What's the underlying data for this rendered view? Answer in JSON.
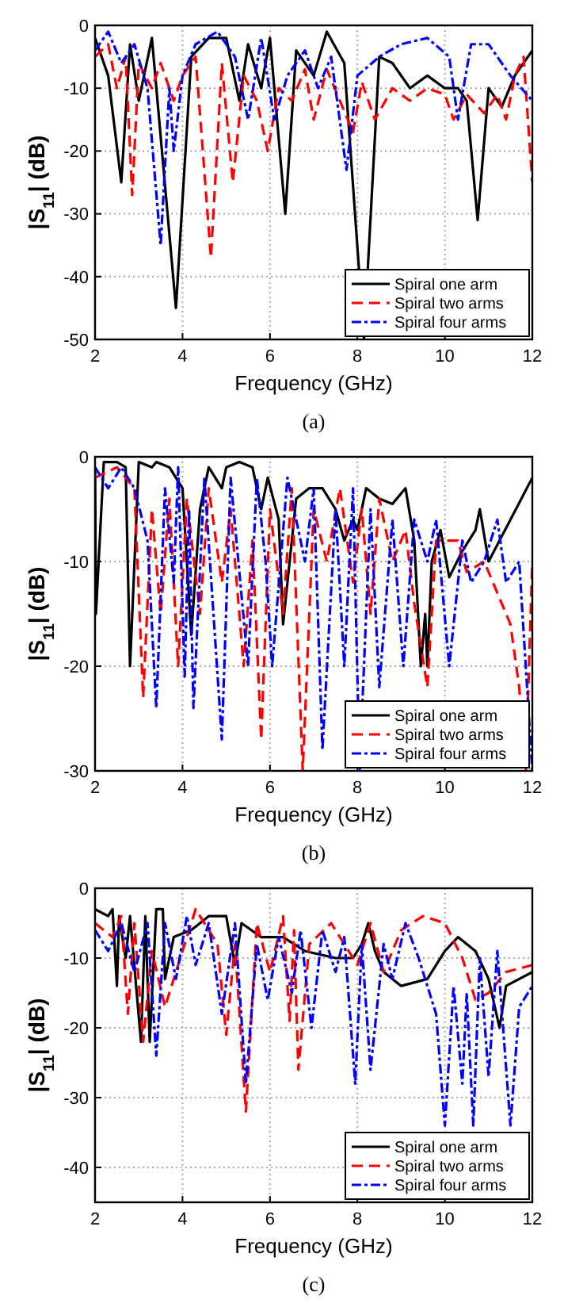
{
  "chart_data": [
    {
      "type": "line",
      "xlabel": "Frequency (GHz)",
      "ylabel": "|S$_{11}$| (dB)",
      "annotations": [
        "(a)"
      ],
      "xlim": [
        2,
        12
      ],
      "ylim": [
        -50,
        0
      ],
      "xticks": [
        2,
        4,
        6,
        8,
        10,
        12
      ],
      "yticks": [
        -50,
        -40,
        -30,
        -20,
        -10,
        0
      ],
      "grid": true,
      "legend": "bottom right",
      "series": [
        {
          "name": "Spiral one arm",
          "color": "#000000",
          "line_style": "solid",
          "x": [
            2,
            2.3,
            2.6,
            2.8,
            3.0,
            3.3,
            3.85,
            4.2,
            4.6,
            5.0,
            5.3,
            5.5,
            5.8,
            6.0,
            6.35,
            6.6,
            7.0,
            7.3,
            7.7,
            8.15,
            8.5,
            8.8,
            9.2,
            9.6,
            10.0,
            10.3,
            10.5,
            10.75,
            11.0,
            11.3,
            11.6,
            12
          ],
          "values": [
            -2,
            -8,
            -25,
            -3,
            -12,
            -2,
            -45,
            -5,
            -2,
            -2,
            -12,
            -3,
            -10,
            -2,
            -30,
            -4,
            -8,
            -1,
            -6,
            -50,
            -5,
            -6,
            -10,
            -8,
            -10,
            -10,
            -12,
            -31,
            -10,
            -13,
            -8,
            -4
          ]
        },
        {
          "name": "Spiral two arms",
          "color": "#ff0000",
          "line_style": "dashed",
          "x": [
            2,
            2.3,
            2.5,
            2.7,
            2.85,
            3.0,
            3.3,
            3.5,
            3.8,
            4.0,
            4.3,
            4.65,
            4.9,
            5.15,
            5.4,
            5.7,
            5.95,
            6.2,
            6.5,
            6.8,
            7.0,
            7.3,
            7.6,
            7.9,
            8.1,
            8.4,
            8.8,
            9.2,
            9.6,
            10.0,
            10.2,
            10.5,
            10.9,
            11.2,
            11.4,
            11.6,
            11.8,
            12
          ],
          "values": [
            -5,
            -3,
            -10,
            -5,
            -27,
            -6,
            -10,
            -6,
            -12,
            -8,
            -5,
            -37,
            -6,
            -25,
            -8,
            -12,
            -20,
            -10,
            -12,
            -7,
            -15,
            -7,
            -12,
            -17,
            -9,
            -15,
            -10,
            -12,
            -10,
            -11,
            -15,
            -11,
            -14,
            -11,
            -15,
            -8,
            -5,
            -25
          ]
        },
        {
          "name": "Spiral four arms",
          "color": "#0000ff",
          "line_style": "dotted",
          "x": [
            2,
            2.3,
            2.6,
            2.9,
            3.2,
            3.5,
            3.7,
            3.8,
            4.0,
            4.3,
            4.8,
            5.2,
            5.5,
            5.8,
            6.1,
            6.4,
            6.8,
            7.1,
            7.4,
            7.75,
            8.0,
            8.5,
            9.0,
            9.6,
            10.1,
            10.3,
            10.6,
            11.0,
            11.5,
            12
          ],
          "values": [
            -4,
            -1,
            -6,
            -3,
            -10,
            -35,
            -10,
            -20,
            -8,
            -3,
            -1,
            -5,
            -15,
            -2,
            -15,
            -8,
            -4,
            -10,
            -5,
            -23,
            -8,
            -5,
            -3,
            -2,
            -5,
            -15,
            -3,
            -3,
            -8,
            -12
          ]
        }
      ]
    },
    {
      "type": "line",
      "xlabel": "Frequency (GHz)",
      "ylabel": "|S$_{11}$| (dB)",
      "annotations": [
        "(b)"
      ],
      "xlim": [
        2,
        12
      ],
      "ylim": [
        -30,
        0
      ],
      "xticks": [
        2,
        4,
        6,
        8,
        10,
        12
      ],
      "yticks": [
        -30,
        -20,
        -10,
        0
      ],
      "grid": true,
      "legend": "bottom right",
      "series": [
        {
          "name": "Spiral one arm",
          "color": "#000000",
          "line_style": "solid",
          "x": [
            2,
            2.02,
            2.2,
            2.5,
            2.7,
            2.8,
            3.0,
            3.3,
            3.4,
            3.7,
            4.0,
            4.2,
            4.4,
            4.6,
            4.9,
            5.0,
            5.3,
            5.6,
            5.8,
            5.95,
            6.2,
            6.3,
            6.6,
            6.9,
            7.2,
            7.5,
            7.7,
            7.9,
            8.0,
            8.2,
            8.5,
            8.8,
            9.1,
            9.3,
            9.45,
            9.55,
            9.6,
            9.7,
            9.9,
            10.1,
            10.4,
            10.7,
            10.8,
            11.0,
            11.5,
            12
          ],
          "values": [
            -1,
            -15,
            -0.5,
            -0.5,
            -1,
            -20,
            -0.5,
            -1,
            -0.5,
            -1,
            -3,
            -17,
            -5,
            -1,
            -3,
            -1,
            -0.5,
            -1,
            -5,
            -2,
            -6,
            -16,
            -4,
            -3,
            -3,
            -5,
            -8,
            -6,
            -7,
            -3,
            -4,
            -4.5,
            -3,
            -8,
            -20,
            -15,
            -20,
            -10,
            -7,
            -11.5,
            -9,
            -7,
            -5,
            -10,
            -6,
            -2
          ]
        },
        {
          "name": "Spiral two arms",
          "color": "#ff0000",
          "line_style": "dashed",
          "x": [
            2,
            2.5,
            2.9,
            3.1,
            3.3,
            3.5,
            3.7,
            3.9,
            4.1,
            4.4,
            4.6,
            4.9,
            5.1,
            5.4,
            5.6,
            5.8,
            6.0,
            6.3,
            6.5,
            6.75,
            7.0,
            7.3,
            7.6,
            7.9,
            8.1,
            8.3,
            8.5,
            8.8,
            9.1,
            9.3,
            9.6,
            9.8,
            10.3,
            10.5,
            10.9,
            11.2,
            11.5,
            11.7,
            11.85,
            12
          ],
          "values": [
            -2,
            -1,
            -3,
            -23,
            -5,
            -15,
            -4,
            -20,
            -4,
            -15,
            -3,
            -12,
            -5,
            -20,
            -8,
            -27,
            -5,
            -15,
            -3,
            -30,
            -5,
            -10,
            -3,
            -12,
            -5,
            -15,
            -4,
            -10,
            -7,
            -14,
            -22,
            -8,
            -8,
            -11,
            -10,
            -13,
            -16,
            -22,
            -30,
            -10
          ]
        },
        {
          "name": "Spiral four arms",
          "color": "#0000ff",
          "line_style": "dotted",
          "x": [
            2,
            2.3,
            2.6,
            2.9,
            3.2,
            3.4,
            3.6,
            3.8,
            3.9,
            4.05,
            4.15,
            4.25,
            4.5,
            4.9,
            5.1,
            5.5,
            5.7,
            5.9,
            6.05,
            6.4,
            6.8,
            7.0,
            7.2,
            7.5,
            7.7,
            7.9,
            8.05,
            8.3,
            8.5,
            8.8,
            9.05,
            9.3,
            9.6,
            9.8,
            10.1,
            10.4,
            10.6,
            10.9,
            11.2,
            11.4,
            11.7,
            12
          ],
          "values": [
            -1,
            -3,
            -1,
            -3,
            -8,
            -24,
            -3,
            -12,
            -1,
            -21,
            -5,
            -24,
            -2,
            -27,
            -2,
            -20,
            -2,
            -10,
            -20,
            -2,
            -10,
            -3,
            -28,
            -5,
            -20,
            -3,
            -30,
            -5,
            -22,
            -6,
            -20,
            -6,
            -10,
            -6,
            -20,
            -8,
            -12,
            -10,
            -6,
            -12,
            -10,
            -30
          ]
        }
      ]
    },
    {
      "type": "line",
      "xlabel": "Frequency (GHz)",
      "ylabel": "|S$_{11}$| (dB)",
      "annotations": [
        "(c)"
      ],
      "xlim": [
        2,
        12
      ],
      "ylim": [
        -45,
        0
      ],
      "xticks": [
        2,
        4,
        6,
        8,
        10,
        12
      ],
      "yticks": [
        -40,
        -30,
        -20,
        -10,
        0
      ],
      "grid": true,
      "legend": "bottom right",
      "series": [
        {
          "name": "Spiral one arm",
          "color": "#000000",
          "line_style": "solid",
          "x": [
            2,
            2.3,
            2.4,
            2.5,
            2.55,
            2.7,
            2.8,
            3.05,
            3.15,
            3.25,
            3.4,
            3.55,
            3.6,
            3.8,
            4.2,
            4.6,
            5.0,
            5.2,
            5.35,
            5.8,
            6.3,
            6.8,
            7.5,
            7.9,
            8.1,
            8.25,
            8.4,
            8.6,
            9.0,
            9.6,
            10.0,
            10.3,
            10.7,
            11.0,
            11.25,
            11.4,
            12
          ],
          "values": [
            -3,
            -4,
            -3,
            -14,
            -4,
            -10,
            -4,
            -22,
            -4,
            -22,
            -3,
            -3,
            -13,
            -7,
            -6,
            -4,
            -4,
            -11,
            -5,
            -7,
            -7,
            -9,
            -10,
            -10,
            -8,
            -5,
            -9,
            -12,
            -14,
            -13,
            -9,
            -7,
            -9,
            -13,
            -20,
            -14,
            -12
          ]
        },
        {
          "name": "Spiral two arms",
          "color": "#ff0000",
          "line_style": "dashed",
          "x": [
            2,
            2.4,
            2.6,
            2.75,
            2.9,
            3.1,
            3.3,
            3.6,
            3.9,
            4.3,
            4.8,
            5.0,
            5.2,
            5.45,
            5.7,
            6.0,
            6.3,
            6.45,
            6.55,
            6.65,
            6.9,
            7.4,
            7.8,
            8.0,
            8.3,
            8.6,
            9.0,
            9.5,
            10.0,
            10.4,
            10.7,
            11.0,
            11.4,
            12
          ],
          "values": [
            -5,
            -7,
            -4,
            -18,
            -5,
            -22,
            -9,
            -17,
            -11,
            -3,
            -8,
            -21,
            -8,
            -32,
            -5,
            -12,
            -4,
            -19,
            -6,
            -26,
            -8,
            -5,
            -9,
            -11,
            -5,
            -12,
            -6,
            -4,
            -5,
            -10,
            -16,
            -15,
            -12,
            -11
          ]
        },
        {
          "name": "Spiral four arms",
          "color": "#0000ff",
          "line_style": "dotted",
          "x": [
            2,
            2.3,
            2.6,
            2.9,
            3.2,
            3.4,
            3.6,
            3.85,
            4.1,
            4.3,
            4.6,
            4.9,
            5.2,
            5.45,
            5.7,
            5.95,
            6.2,
            6.5,
            6.7,
            6.95,
            7.2,
            7.5,
            7.7,
            7.95,
            8.1,
            8.3,
            8.6,
            8.8,
            9.1,
            9.4,
            9.8,
            10.0,
            10.2,
            10.4,
            10.5,
            10.65,
            10.8,
            11.0,
            11.2,
            11.5,
            11.7,
            12
          ],
          "values": [
            -6,
            -9,
            -5,
            -12,
            -5,
            -24,
            -5,
            -13,
            -4,
            -11,
            -5,
            -18,
            -5,
            -28,
            -8,
            -16,
            -7,
            -15,
            -6,
            -20,
            -6,
            -12,
            -7,
            -28,
            -8,
            -26,
            -8,
            -13,
            -5,
            -10,
            -18,
            -34,
            -14,
            -28,
            -15,
            -34,
            -10,
            -27,
            -9,
            -34,
            -17,
            -14
          ]
        }
      ]
    }
  ]
}
